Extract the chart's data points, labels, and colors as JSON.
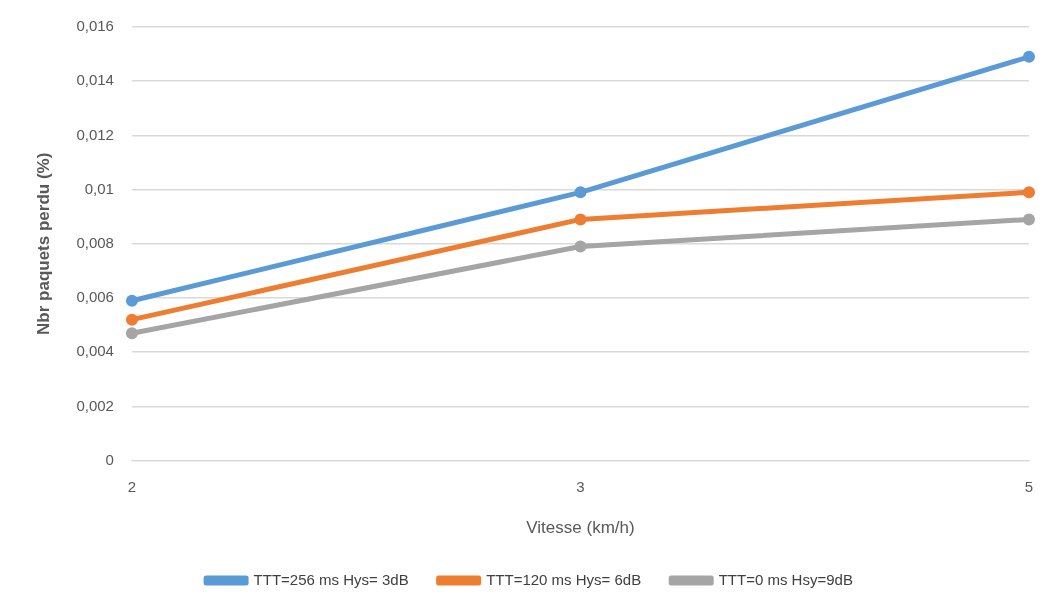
{
  "chart_data": {
    "type": "line",
    "xlabel": "Vitesse (km/h)",
    "ylabel": "Nbr paquets perdu (%)",
    "categories": [
      "2",
      "3",
      "5"
    ],
    "series": [
      {
        "name": "TTT=256 ms Hys= 3dB",
        "color": "#5b9bd5",
        "values": [
          0.0059,
          0.0099,
          0.0149
        ]
      },
      {
        "name": "TTT=120 ms Hys= 6dB",
        "color": "#ed7d31",
        "values": [
          0.0052,
          0.0089,
          0.0099
        ]
      },
      {
        "name": "TTT=0 ms Hsy=9dB",
        "color": "#a5a5a5",
        "values": [
          0.0047,
          0.0079,
          0.0089
        ]
      }
    ],
    "ylim": [
      0,
      0.016
    ],
    "yticks": [
      {
        "value": 0,
        "label": "0"
      },
      {
        "value": 0.002,
        "label": "0,002"
      },
      {
        "value": 0.004,
        "label": "0,004"
      },
      {
        "value": 0.006,
        "label": "0,006"
      },
      {
        "value": 0.008,
        "label": "0,008"
      },
      {
        "value": 0.01,
        "label": "0,01"
      },
      {
        "value": 0.012,
        "label": "0,012"
      },
      {
        "value": 0.014,
        "label": "0,014"
      },
      {
        "value": 0.016,
        "label": "0,016"
      }
    ],
    "grid": "y",
    "legend": "bottom",
    "marker": "circle",
    "line_style": "solid"
  }
}
